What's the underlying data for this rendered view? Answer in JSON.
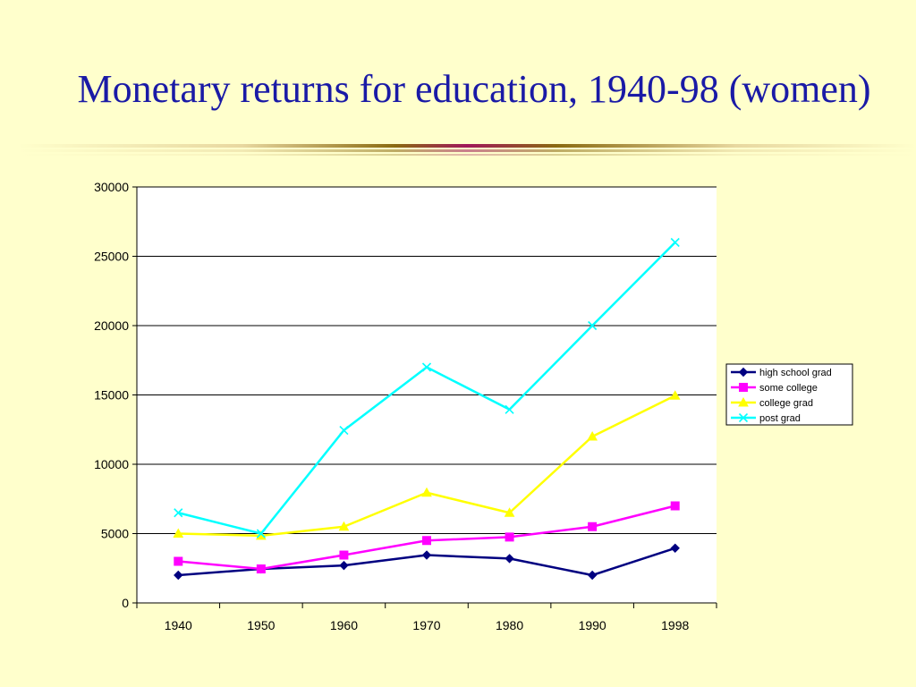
{
  "slide": {
    "title": "Monetary returns for education, 1940-98 (women)"
  },
  "colors": {
    "background": "#ffffcc",
    "title": "#1a1aa6",
    "divider_dark": "#8a6a10",
    "divider_accent": "#a0185a",
    "divider_light": "#e8d8a0"
  },
  "chart_data": {
    "type": "line",
    "title": "",
    "xlabel": "",
    "ylabel": "",
    "categories": [
      "1940",
      "1950",
      "1960",
      "1970",
      "1980",
      "1990",
      "1998"
    ],
    "ylim": [
      0,
      30000
    ],
    "yticks": [
      0,
      5000,
      10000,
      15000,
      20000,
      25000,
      30000
    ],
    "grid": "horizontal",
    "legend_position": "right",
    "series": [
      {
        "name": "high school grad",
        "color": "#000080",
        "marker": "diamond",
        "values": [
          2000,
          2450,
          2700,
          3450,
          3200,
          2000,
          3950
        ]
      },
      {
        "name": "some college",
        "color": "#ff00ff",
        "marker": "square",
        "values": [
          3000,
          2450,
          3450,
          4500,
          4750,
          5500,
          7000
        ]
      },
      {
        "name": "college grad",
        "color": "#ffff00",
        "marker": "triangle",
        "values": [
          5000,
          4850,
          5500,
          7950,
          6500,
          12000,
          14950
        ]
      },
      {
        "name": "post grad",
        "color": "#00ffff",
        "marker": "x",
        "values": [
          6500,
          5000,
          12450,
          17000,
          13950,
          20000,
          26000
        ]
      }
    ]
  }
}
